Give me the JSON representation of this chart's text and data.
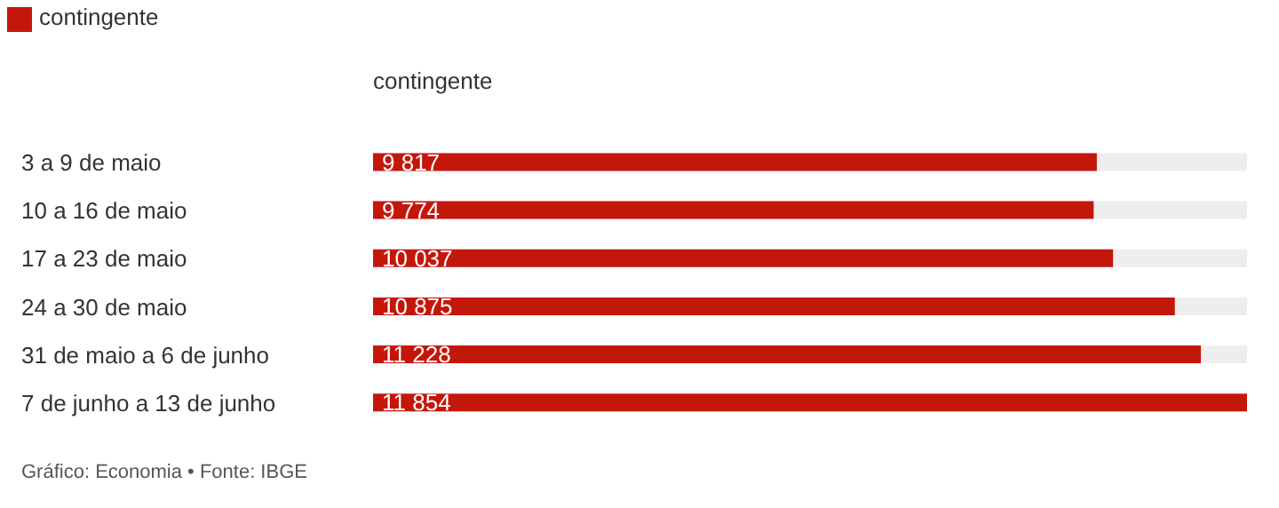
{
  "chart_data": {
    "type": "bar",
    "orientation": "horizontal",
    "xlabel": "contingente",
    "categories": [
      "3 a 9 de maio",
      "10 a 16 de maio",
      "17 a 23 de maio",
      "24 a 30 de maio",
      "31 de maio a 6 de junho",
      "7 de junho a 13 de junho"
    ],
    "series": [
      {
        "name": "contingente",
        "color": "#c4170c",
        "values": [
          9817,
          9774,
          10037,
          10875,
          11228,
          11854
        ]
      }
    ],
    "data_labels": true,
    "legend": "top left",
    "annotations": [
      "Gráfico: Economia • Fonte: IBGE"
    ]
  }
}
